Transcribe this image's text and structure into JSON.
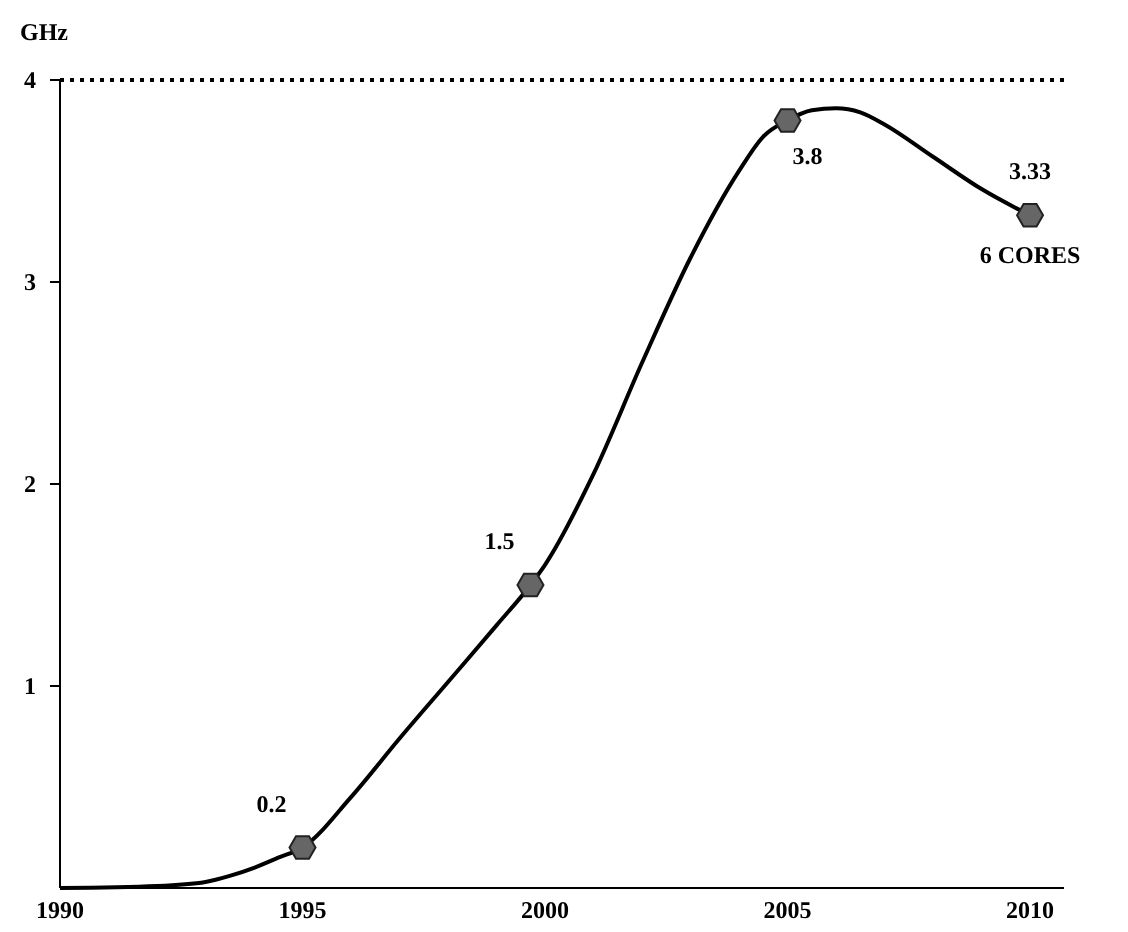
{
  "chart_data": {
    "type": "line",
    "ylabel": "GHz",
    "xlim": [
      1990,
      2010.7
    ],
    "xticks": [
      1990,
      1995,
      2000,
      2005,
      2010
    ],
    "ylim": [
      0,
      4
    ],
    "yticks": [
      1,
      2,
      3,
      4
    ],
    "grid": false,
    "ref_lines": [
      {
        "axis": "y",
        "value": 4,
        "line_style": "dotted",
        "color": "#000000"
      }
    ],
    "annotations": [
      {
        "text": "6 CORES",
        "x": 2010,
        "y": 3.33
      }
    ],
    "series": [
      {
        "color": "#000000",
        "marker": "none",
        "line_style": "solid",
        "x": [
          1990,
          1992,
          1993,
          1993.5,
          1994,
          1994.5,
          1995,
          1996,
          1997,
          1998,
          1999,
          1999.7,
          2000,
          2001,
          2002,
          2003,
          2004,
          2004.5,
          2005,
          2005.5,
          2006,
          2006.5,
          2007,
          2008,
          2009,
          2010
        ],
        "values": [
          0,
          0.01,
          0.03,
          0.06,
          0.1,
          0.15,
          0.2,
          0.45,
          0.74,
          1.02,
          1.3,
          1.5,
          1.6,
          2.05,
          2.6,
          3.12,
          3.55,
          3.72,
          3.8,
          3.85,
          3.86,
          3.84,
          3.78,
          3.62,
          3.46,
          3.33
        ]
      },
      {
        "type": "scatter",
        "color": "#666666",
        "data_labels": true,
        "x": [
          1995,
          1999.7,
          2005,
          2010
        ],
        "values": [
          0.2,
          1.5,
          3.8,
          3.33
        ]
      }
    ]
  }
}
